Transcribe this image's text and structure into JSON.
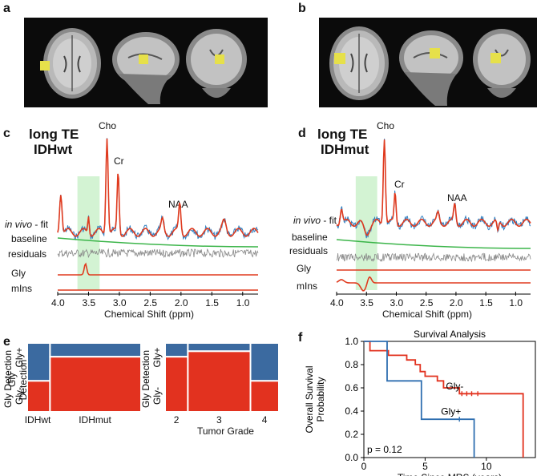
{
  "panels": {
    "a": "a",
    "b": "b",
    "c": "c",
    "d": "d",
    "e": "e",
    "f": "f"
  },
  "spectra": {
    "c": {
      "title_line1": "long TE",
      "title_line2": "IDHwt"
    },
    "d": {
      "title_line1": "long TE",
      "title_line2": "IDHmut"
    },
    "peaks": {
      "cho": "Cho",
      "cr": "Cr",
      "naa": "NAA"
    },
    "rows": {
      "fit_italic": "in vivo",
      "fit_suffix": " - fit",
      "baseline": "baseline",
      "residuals": "residuals",
      "gly": "Gly",
      "mins": "mIns"
    },
    "ticks": [
      "4.0",
      "3.5",
      "3.0",
      "2.5",
      "2.0",
      "1.5",
      "1.0"
    ],
    "xlabel": "Chemical Shift (ppm)",
    "colors": {
      "fit": "#e03a1e",
      "data": "#2f7fc1",
      "baseline": "#3cb54a",
      "residual": "#888888",
      "highlight": "#c8f0c8"
    }
  },
  "mosaic": {
    "ylabel": "Gly Detection",
    "gly_plus": "Gly+",
    "gly_minus": "Gly-",
    "left": {
      "categories": [
        "IDHwt",
        "IDHmut"
      ],
      "widths": [
        0.2,
        0.8
      ],
      "gly_plus_fraction": [
        0.55,
        0.2
      ]
    },
    "right": {
      "categories": [
        "2",
        "3",
        "4"
      ],
      "widths": [
        0.2,
        0.55,
        0.25
      ],
      "gly_plus_fraction": [
        0.2,
        0.12,
        0.55
      ],
      "xlabel": "Tumor Grade"
    },
    "colors": {
      "plus": "#3b6aa0",
      "minus": "#e2321f"
    }
  },
  "chart_data": {
    "type": "line",
    "title": "Survival Analysis",
    "xlabel": "Time Since MRS (years)",
    "ylabel": "Overall Survival Probability",
    "ylabel_line1": "Overall Survival",
    "ylabel_line2": "Probability",
    "xlim": [
      0,
      14
    ],
    "ylim": [
      0,
      1.0
    ],
    "xticks": [
      0,
      5,
      10
    ],
    "yticks": [
      0.0,
      0.2,
      0.4,
      0.6,
      0.8,
      1.0
    ],
    "ytick_labels": [
      "0.0",
      "0.2",
      "0.4",
      "0.6",
      "0.8",
      "1.0"
    ],
    "series": [
      {
        "name": "Gly-",
        "color": "#e2321f",
        "x": [
          0,
          0.5,
          0.5,
          2,
          2,
          3.5,
          3.5,
          4.2,
          4.2,
          4.6,
          4.6,
          5,
          5,
          6,
          6,
          6.5,
          6.5,
          7.8,
          7.8,
          13,
          13
        ],
        "y": [
          1.0,
          1.0,
          0.92,
          0.92,
          0.88,
          0.88,
          0.84,
          0.84,
          0.8,
          0.8,
          0.74,
          0.74,
          0.7,
          0.7,
          0.66,
          0.66,
          0.6,
          0.6,
          0.55,
          0.55,
          0.0
        ],
        "censor_x": [
          8.0,
          8.4,
          8.8,
          9.3
        ],
        "censor_y": 0.55
      },
      {
        "name": "Gly+",
        "color": "#2f6fb0",
        "x": [
          0,
          1.9,
          1.9,
          4.7,
          4.7,
          9.0,
          9.0
        ],
        "y": [
          1.0,
          1.0,
          0.66,
          0.66,
          0.33,
          0.33,
          0.0
        ],
        "censor_x": [
          7.8
        ],
        "censor_y": 0.33
      }
    ],
    "annotation": "p = 0.12"
  }
}
